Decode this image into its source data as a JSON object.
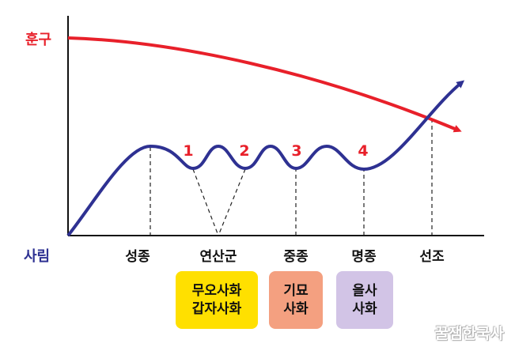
{
  "lines": {
    "hungu": {
      "label": "훈구",
      "color": "#e8202a"
    },
    "sarim": {
      "label": "사림",
      "color": "#2e3192"
    }
  },
  "axis_labels": [
    "성종",
    "연산군",
    "중종",
    "명종",
    "선조"
  ],
  "event_numbers": [
    "1",
    "2",
    "3",
    "4"
  ],
  "boxes": [
    {
      "lines": [
        "무오사화",
        "갑자사화"
      ],
      "color": "#ffe000"
    },
    {
      "lines": [
        "기묘",
        "사화"
      ],
      "color": "#f4a080"
    },
    {
      "lines": [
        "을사",
        "사화"
      ],
      "color": "#d2c4e6"
    }
  ],
  "watermark": "꿀잼한국사"
}
